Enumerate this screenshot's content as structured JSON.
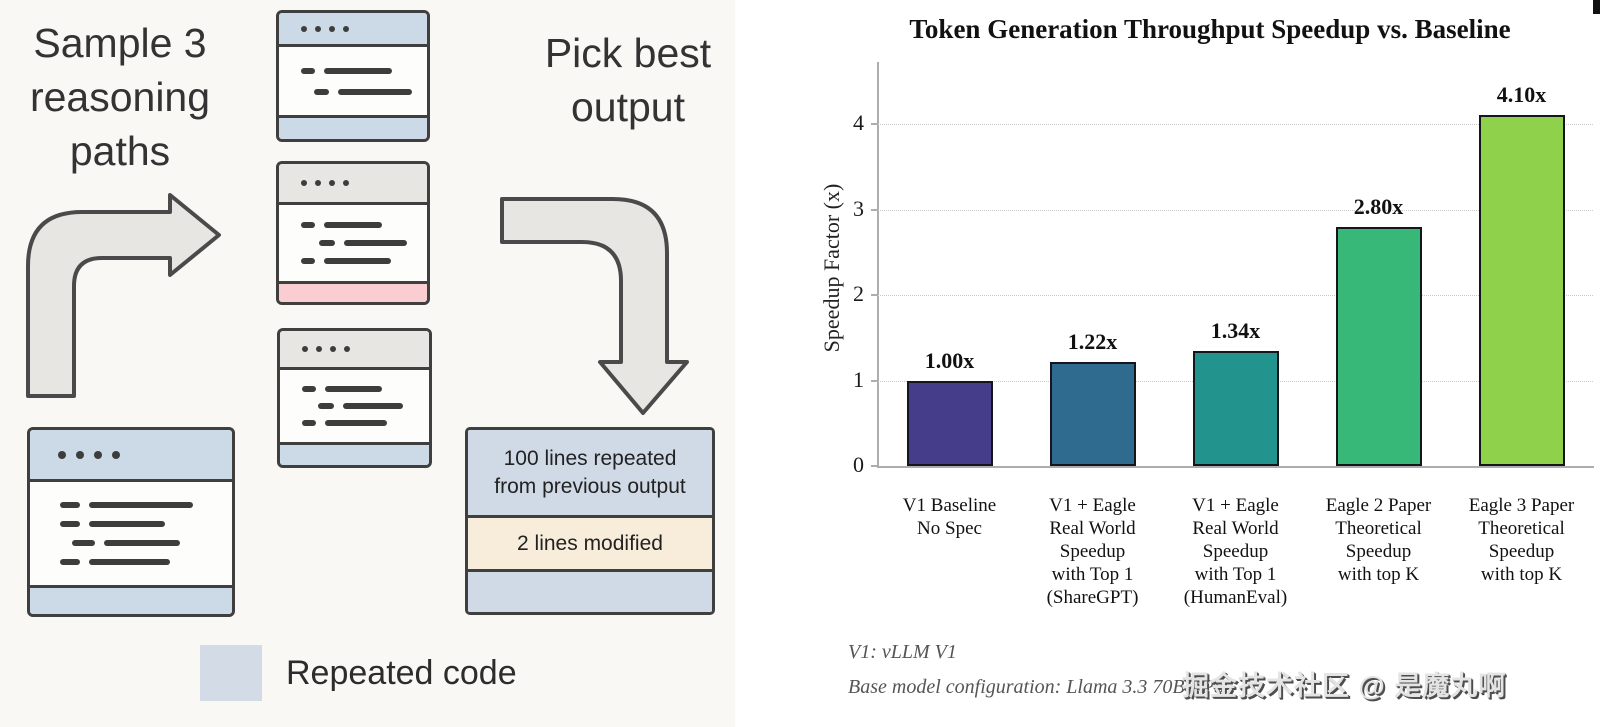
{
  "left_panel": {
    "sample_label": "Sample 3\nreasoning\npaths",
    "pick_label": "Pick best\noutput",
    "output_box": {
      "section1": "100 lines repeated\nfrom previous output",
      "section2": "2 lines modified"
    },
    "legend": {
      "label": "Repeated code",
      "swatch_color": "#d3dce6"
    },
    "colors": {
      "repeated_blue": "#ccd9e7",
      "header_gray": "#e7e6e3",
      "modified_pink": "#f9cdd1",
      "modified_cream": "#f8edda",
      "panel_background": "#faf8f5",
      "arrow_fill": "#e7e6e3",
      "arrow_stroke": "#4a4a4a"
    }
  },
  "chart_data": {
    "type": "bar",
    "title": "Token Generation Throughput Speedup vs. Baseline",
    "xlabel": "",
    "ylabel": "Speedup Factor (x)",
    "categories": [
      "V1 Baseline\nNo Spec",
      "V1 + Eagle\nReal World\nSpeedup\nwith Top 1\n(ShareGPT)",
      "V1 + Eagle\nReal World\nSpeedup\nwith Top 1\n(HumanEval)",
      "Eagle 2 Paper\nTheoretical\nSpeedup\nwith top K",
      "Eagle 3 Paper\nTheoretical\nSpeedup\nwith top K"
    ],
    "values": [
      1.0,
      1.22,
      1.34,
      2.8,
      4.1
    ],
    "value_labels": [
      "1.00x",
      "1.22x",
      "1.34x",
      "2.80x",
      "4.10x"
    ],
    "bar_colors": [
      "#453c8a",
      "#2e6b8e",
      "#22948d",
      "#38b878",
      "#8fd14a"
    ],
    "yticks": [
      0,
      1,
      2,
      3,
      4
    ],
    "ylim": [
      0,
      4.7
    ],
    "grid": "horizontal-dotted",
    "legend_position": "none",
    "notes": [
      "V1: vLLM V1",
      "Base model configuration: Llama 3.3 70B FP8"
    ]
  },
  "watermark": "掘金技术社区 @ 是魔丸啊"
}
